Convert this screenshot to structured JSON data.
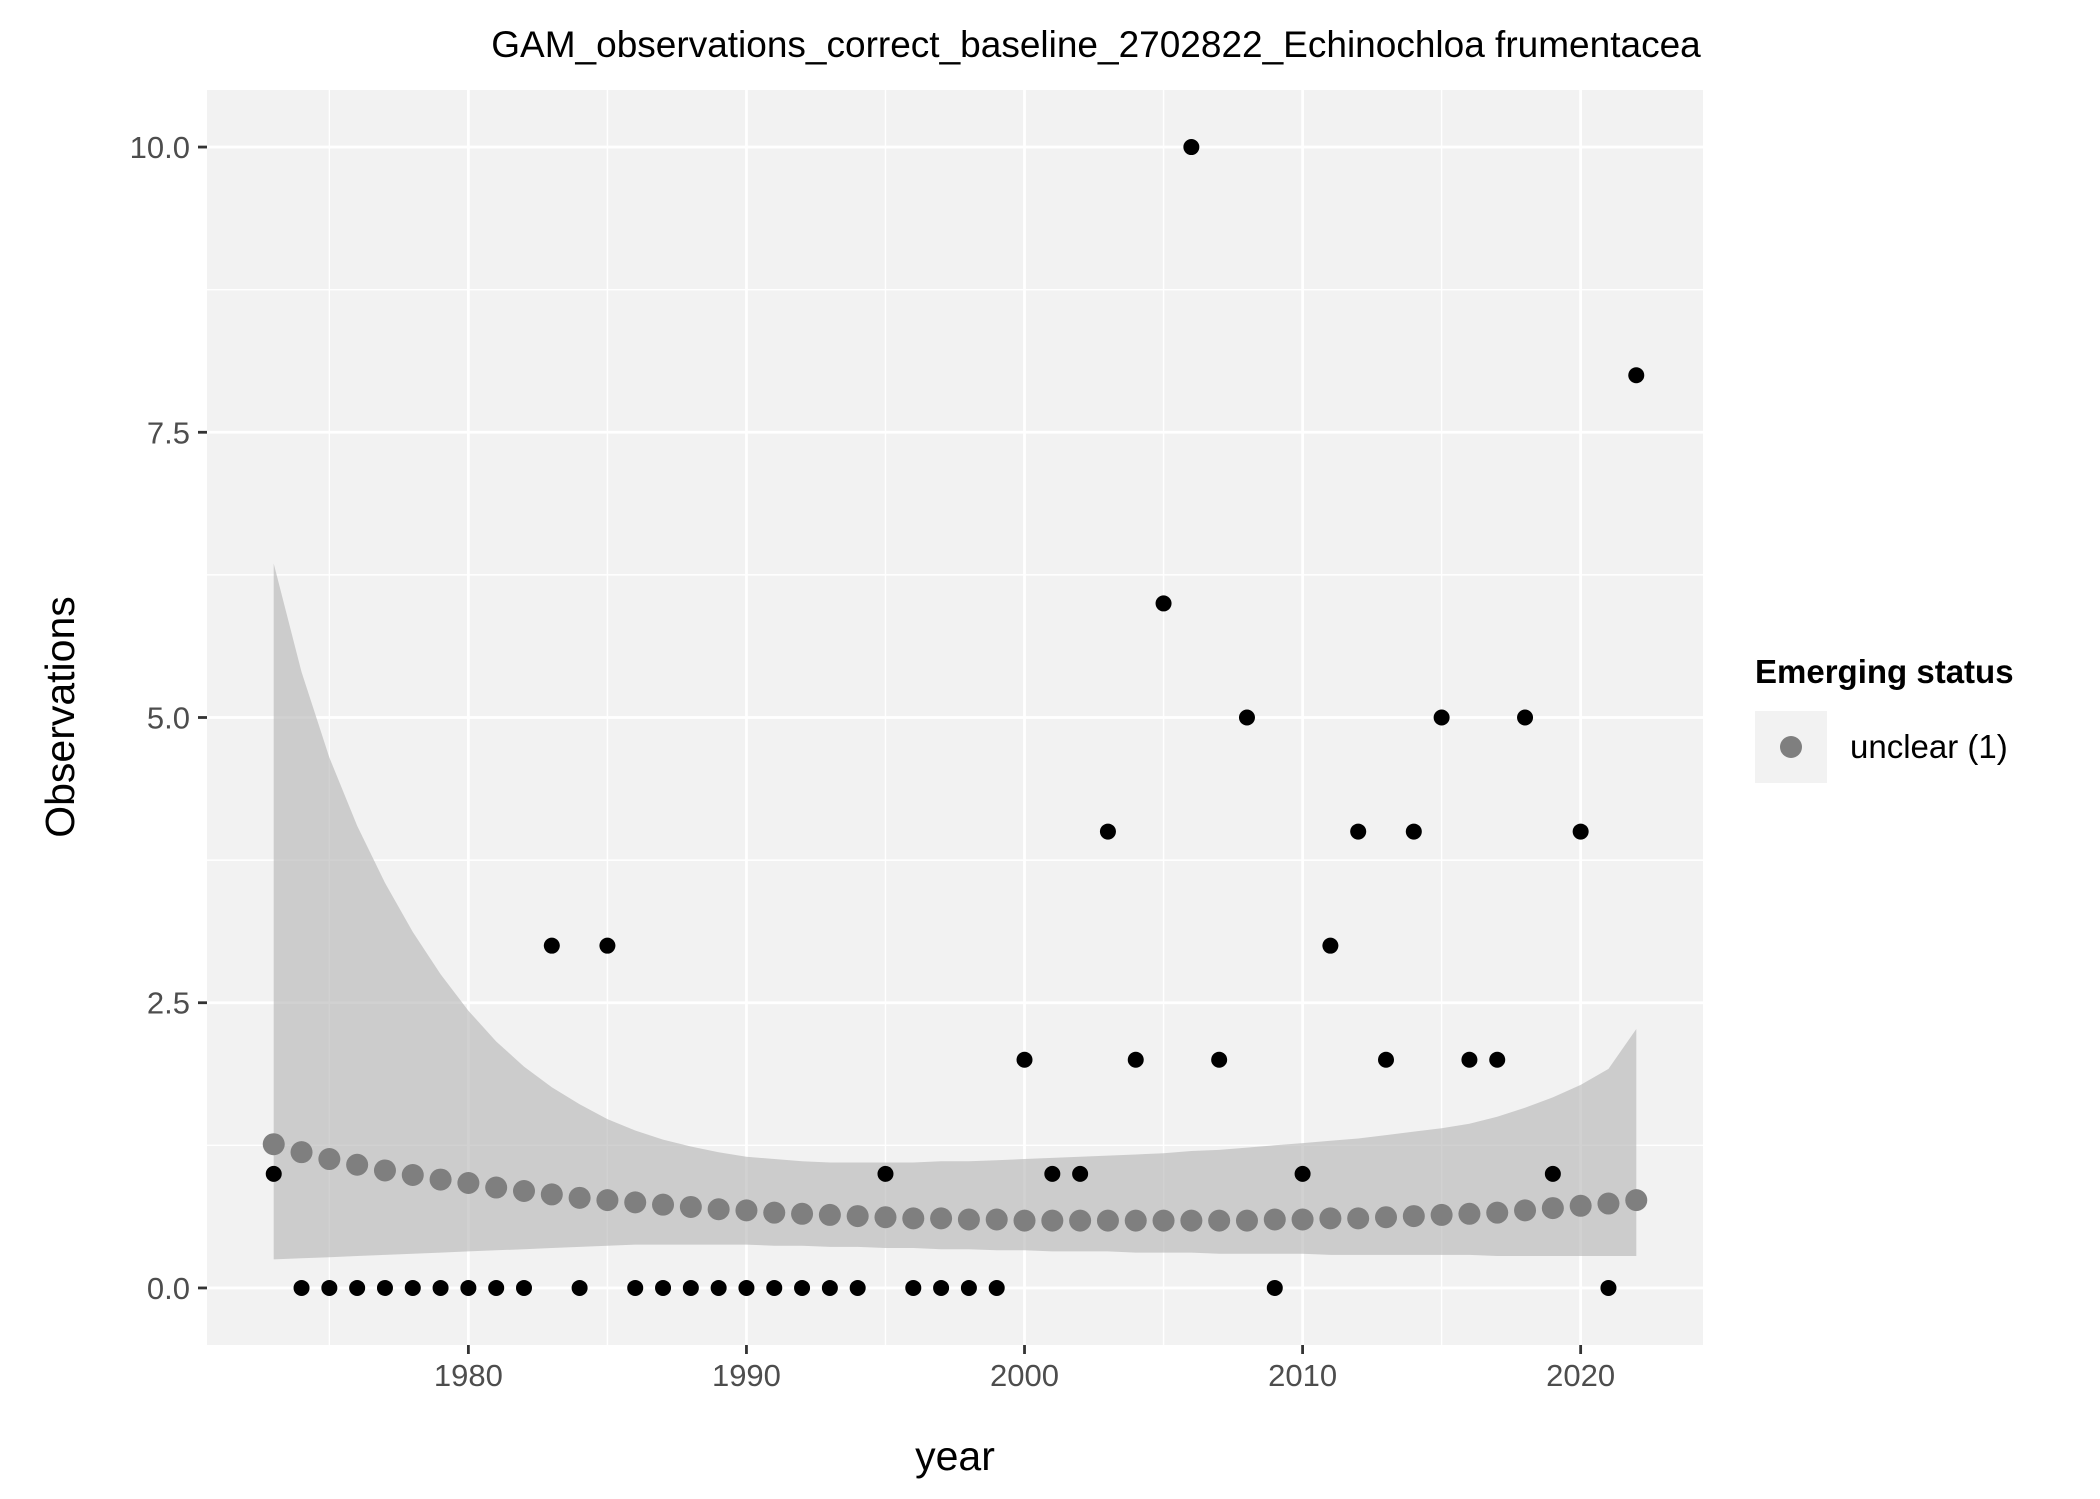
{
  "chart_data": {
    "type": "scatter",
    "title": "GAM_observations_correct_baseline_2702822_Echinochloa frumentacea",
    "xlabel": "year",
    "ylabel": "Observations",
    "xlim": [
      1970.6,
      2024.4
    ],
    "ylim": [
      -0.5,
      10.5
    ],
    "x_ticks": [
      1980,
      1990,
      2000,
      2010,
      2020
    ],
    "x_tick_labels": [
      "1980",
      "1990",
      "2000",
      "2010",
      "2020"
    ],
    "y_ticks": [
      0,
      2.5,
      5,
      7.5,
      10
    ],
    "y_tick_labels": [
      "0.0",
      "2.5",
      "5.0",
      "7.5",
      "10.0"
    ],
    "grid": true,
    "panel_background": "#f2f2f2",
    "legend": {
      "title": "Emerging status",
      "placement": "right",
      "entries": [
        {
          "label": "unclear (1)",
          "color": "#7f7f7f"
        }
      ]
    },
    "series": [
      {
        "role": "observed",
        "color": "#000000",
        "x": [
          1973,
          1974,
          1975,
          1976,
          1977,
          1978,
          1979,
          1980,
          1981,
          1982,
          1983,
          1984,
          1985,
          1986,
          1987,
          1988,
          1989,
          1990,
          1991,
          1992,
          1993,
          1994,
          1995,
          1996,
          1997,
          1998,
          1999,
          2000,
          2001,
          2002,
          2003,
          2004,
          2005,
          2006,
          2007,
          2008,
          2009,
          2010,
          2011,
          2012,
          2013,
          2014,
          2015,
          2016,
          2017,
          2018,
          2019,
          2020,
          2021,
          2022
        ],
        "y": [
          1,
          0,
          0,
          0,
          0,
          0,
          0,
          0,
          0,
          0,
          3,
          0,
          3,
          0,
          0,
          0,
          0,
          0,
          0,
          0,
          0,
          0,
          1,
          0,
          0,
          0,
          0,
          2,
          1,
          1,
          4,
          2,
          6,
          10,
          2,
          5,
          0,
          1,
          3,
          4,
          2,
          4,
          5,
          2,
          2,
          5,
          1,
          4,
          0,
          8
        ]
      },
      {
        "name": "unclear (1)",
        "role": "fitted",
        "color": "#7f7f7f",
        "x": [
          1973,
          1974,
          1975,
          1976,
          1977,
          1978,
          1979,
          1980,
          1981,
          1982,
          1983,
          1984,
          1985,
          1986,
          1987,
          1988,
          1989,
          1990,
          1991,
          1992,
          1993,
          1994,
          1995,
          1996,
          1997,
          1998,
          1999,
          2000,
          2001,
          2002,
          2003,
          2004,
          2005,
          2006,
          2007,
          2008,
          2009,
          2010,
          2011,
          2012,
          2013,
          2014,
          2015,
          2016,
          2017,
          2018,
          2019,
          2020,
          2021,
          2022
        ],
        "y": [
          1.26,
          1.19,
          1.13,
          1.08,
          1.03,
          0.99,
          0.95,
          0.92,
          0.88,
          0.85,
          0.82,
          0.79,
          0.77,
          0.75,
          0.73,
          0.71,
          0.69,
          0.68,
          0.66,
          0.65,
          0.64,
          0.63,
          0.62,
          0.61,
          0.61,
          0.6,
          0.6,
          0.59,
          0.59,
          0.59,
          0.59,
          0.59,
          0.59,
          0.59,
          0.59,
          0.59,
          0.6,
          0.6,
          0.61,
          0.61,
          0.62,
          0.63,
          0.64,
          0.65,
          0.66,
          0.68,
          0.7,
          0.72,
          0.74,
          0.77
        ],
        "lower": [
          0.25,
          0.26,
          0.27,
          0.28,
          0.29,
          0.3,
          0.31,
          0.32,
          0.33,
          0.34,
          0.35,
          0.36,
          0.37,
          0.38,
          0.38,
          0.38,
          0.38,
          0.38,
          0.37,
          0.37,
          0.36,
          0.36,
          0.35,
          0.35,
          0.34,
          0.34,
          0.33,
          0.33,
          0.32,
          0.32,
          0.32,
          0.31,
          0.31,
          0.31,
          0.3,
          0.3,
          0.3,
          0.3,
          0.29,
          0.29,
          0.29,
          0.29,
          0.29,
          0.29,
          0.28,
          0.28,
          0.28,
          0.28,
          0.28,
          0.28
        ],
        "upper": [
          6.35,
          5.4,
          4.65,
          4.05,
          3.55,
          3.12,
          2.75,
          2.43,
          2.16,
          1.94,
          1.76,
          1.61,
          1.48,
          1.38,
          1.3,
          1.24,
          1.19,
          1.15,
          1.13,
          1.11,
          1.1,
          1.1,
          1.1,
          1.1,
          1.11,
          1.11,
          1.12,
          1.13,
          1.14,
          1.15,
          1.16,
          1.17,
          1.18,
          1.2,
          1.21,
          1.23,
          1.25,
          1.27,
          1.29,
          1.31,
          1.34,
          1.37,
          1.4,
          1.44,
          1.5,
          1.58,
          1.67,
          1.78,
          1.92,
          2.27
        ]
      }
    ]
  }
}
